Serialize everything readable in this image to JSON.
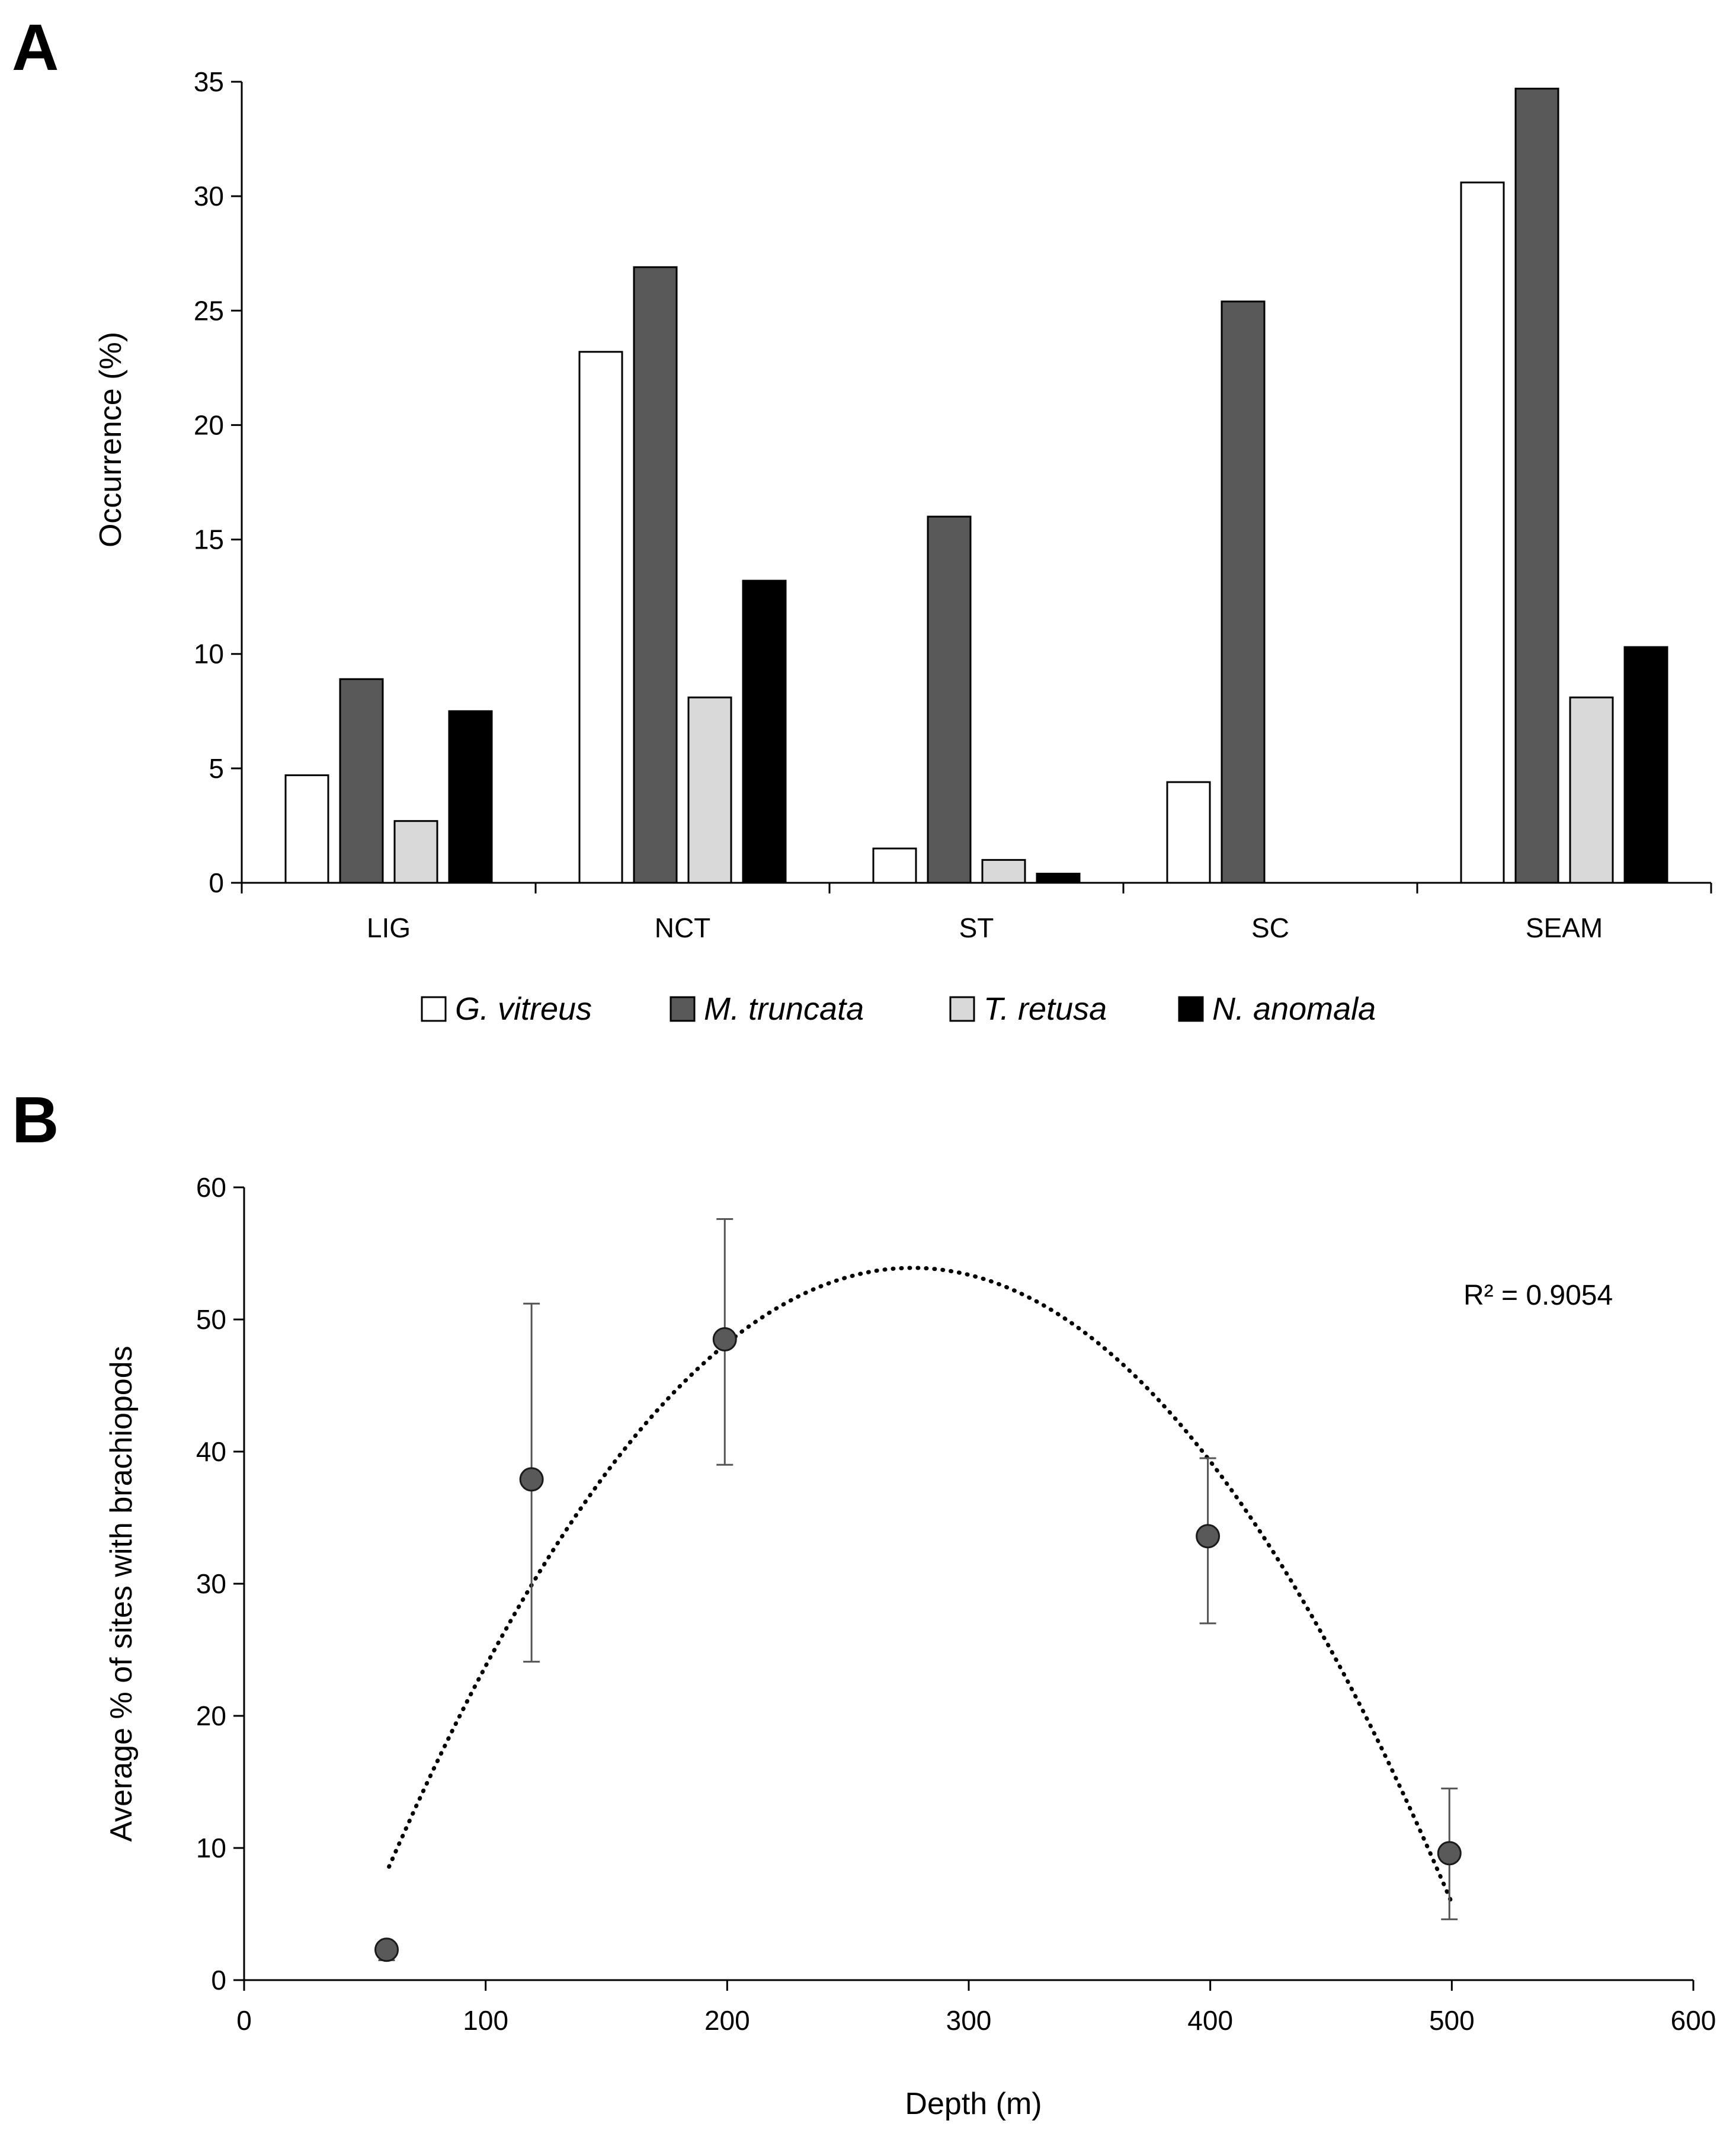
{
  "panels": {
    "a_label": "A",
    "b_label": "B"
  },
  "colors": {
    "G. vitreus": "#ffffff",
    "M. truncata": "#595959",
    "T. retusa": "#d9d9d9",
    "N. anomala": "#000000",
    "point": "#595959"
  },
  "chart_data": [
    {
      "id": "A",
      "type": "bar",
      "title": "",
      "xlabel": "",
      "ylabel": "Occurrence (%)",
      "ylim": [
        0,
        35
      ],
      "yticks": [
        0,
        5,
        10,
        15,
        20,
        25,
        30,
        35
      ],
      "categories": [
        "LIG",
        "NCT",
        "ST",
        "SC",
        "SEAM"
      ],
      "series": [
        {
          "name": "G. vitreus",
          "values": [
            4.7,
            23.2,
            1.5,
            4.4,
            30.6
          ]
        },
        {
          "name": "M. truncata",
          "values": [
            8.9,
            26.9,
            16.0,
            25.4,
            34.7
          ]
        },
        {
          "name": "T. retusa",
          "values": [
            2.7,
            8.1,
            1.0,
            0,
            8.1
          ]
        },
        {
          "name": "N. anomala",
          "values": [
            7.5,
            13.2,
            0.4,
            0,
            10.3
          ]
        }
      ],
      "legend": "bottom"
    },
    {
      "id": "B",
      "type": "scatter",
      "title": "",
      "xlabel": "Depth (m)",
      "ylabel": "Average % of sites with brachiopods",
      "xlim": [
        0,
        600
      ],
      "ylim": [
        0,
        60
      ],
      "xticks": [
        0,
        100,
        200,
        300,
        400,
        500,
        600
      ],
      "yticks": [
        0,
        10,
        20,
        30,
        40,
        50,
        60
      ],
      "points": [
        {
          "x": 59,
          "y": 2.3,
          "err_low": 1.5,
          "err_high": 2.3
        },
        {
          "x": 119,
          "y": 37.9,
          "err_low": 24.1,
          "err_high": 51.2
        },
        {
          "x": 199,
          "y": 48.5,
          "err_low": 39.0,
          "err_high": 57.6
        },
        {
          "x": 399,
          "y": 33.6,
          "err_low": 27.0,
          "err_high": 39.5
        },
        {
          "x": 499,
          "y": 9.6,
          "err_low": 4.6,
          "err_high": 14.5
        }
      ],
      "trendline": {
        "type": "polynomial-2",
        "style": "dotted",
        "x_range": [
          60,
          500
        ],
        "r2_label": "R² = 0.9054"
      }
    }
  ]
}
